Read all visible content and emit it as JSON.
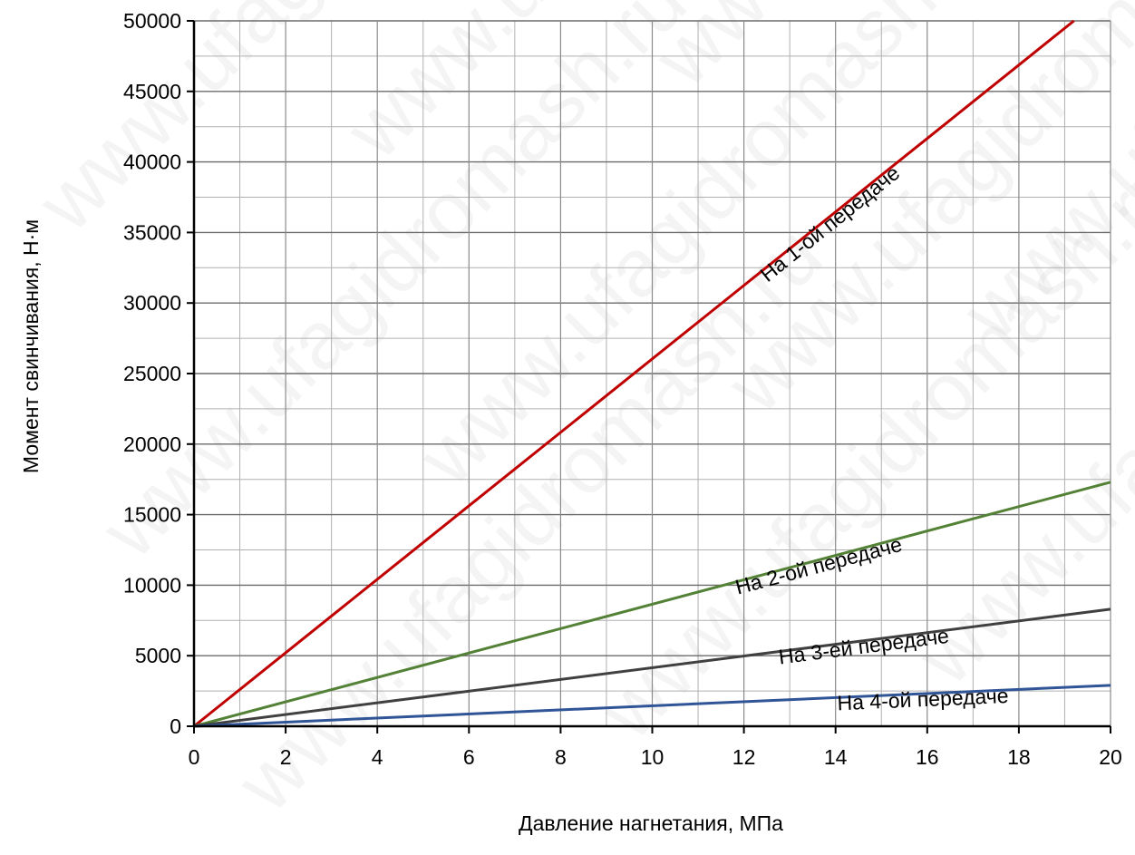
{
  "chart_data": {
    "type": "line",
    "xlabel": "Давление нагнетания, МПа",
    "ylabel": "Момент свинчивания, Н·м",
    "xlim": [
      0,
      20
    ],
    "ylim": [
      0,
      50000
    ],
    "x_ticks": [
      0,
      2,
      4,
      6,
      8,
      10,
      12,
      14,
      16,
      18,
      20
    ],
    "y_ticks": [
      0,
      5000,
      10000,
      15000,
      20000,
      25000,
      30000,
      35000,
      40000,
      45000,
      50000
    ],
    "grid": true,
    "series": [
      {
        "name": "На 1-ой передаче",
        "color": "#c00000",
        "x": [
          0,
          19.2
        ],
        "y": [
          0,
          50000
        ]
      },
      {
        "name": "На 2-ой передаче",
        "color": "#538135",
        "x": [
          0,
          20
        ],
        "y": [
          0,
          17300
        ]
      },
      {
        "name": "На 3-ей передаче",
        "color": "#404040",
        "x": [
          0,
          20
        ],
        "y": [
          0,
          8300
        ]
      },
      {
        "name": "На 4-ой передаче",
        "color": "#2f5597",
        "x": [
          0,
          20
        ],
        "y": [
          0,
          2900
        ]
      }
    ]
  },
  "watermark_text": "www.ufagidromash.ru"
}
